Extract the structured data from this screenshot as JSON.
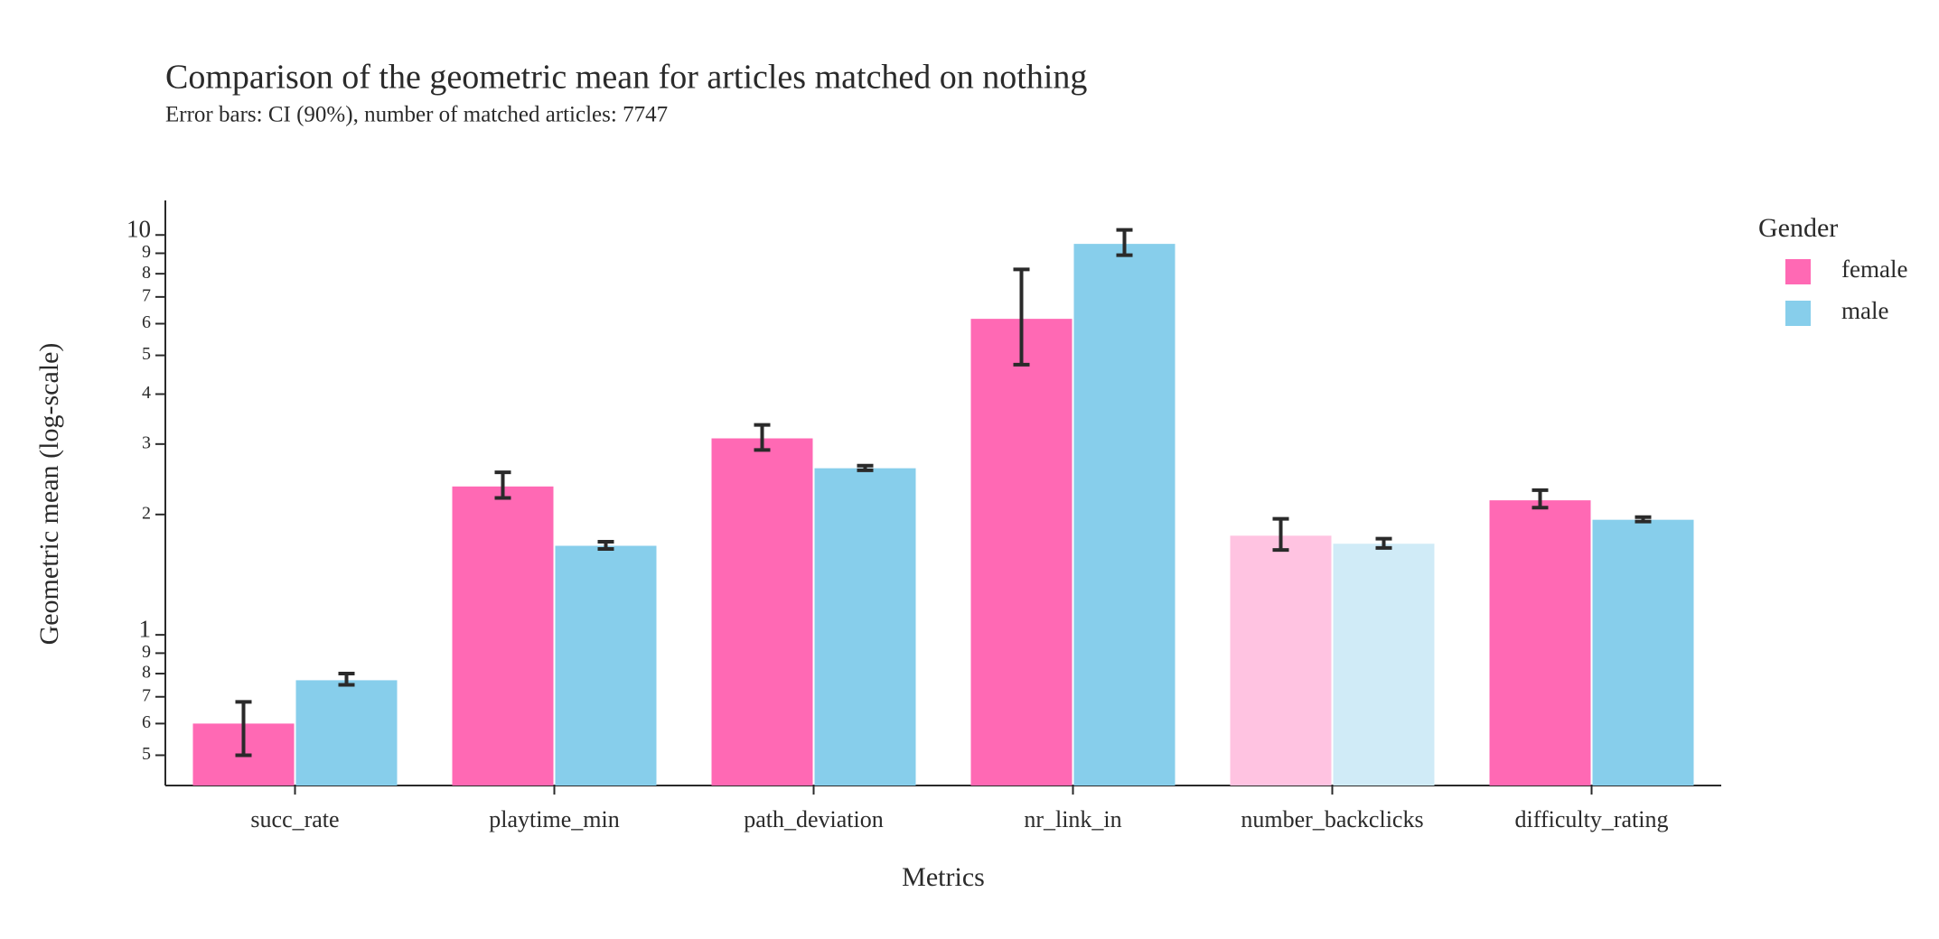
{
  "chart_data": {
    "type": "bar",
    "title": "Comparison of the geometric mean for articles matched on nothing",
    "subtitle": "Error bars: CI (90%), number of matched articles: 7747",
    "x_label": "Metrics",
    "y_label": "Geometric mean (log-scale)",
    "log_scale": true,
    "legend_title": "Gender",
    "legend_position": "right",
    "categories": [
      "succ_rate",
      "playtime_min",
      "path_deviation",
      "nr_link_in",
      "number_backclicks",
      "difficulty_rating"
    ],
    "series": [
      {
        "name": "female",
        "color": "#ff69b4",
        "colors": [
          "#ff69b4",
          "#ff69b4",
          "#ff69b4",
          "#ff69b4",
          "#ffc3e1",
          "#ff69b4"
        ],
        "values": [
          0.6,
          2.35,
          3.1,
          6.17,
          1.77,
          2.17
        ],
        "ci_low": [
          0.5,
          2.2,
          2.9,
          4.74,
          1.63,
          2.08
        ],
        "ci_high": [
          0.68,
          2.55,
          3.35,
          8.2,
          1.95,
          2.3
        ]
      },
      {
        "name": "male",
        "color": "#87ceeb",
        "colors": [
          "#87ceeb",
          "#87ceeb",
          "#87ceeb",
          "#87ceeb",
          "#d0ebf7",
          "#87ceeb"
        ],
        "values": [
          0.77,
          1.67,
          2.61,
          9.5,
          1.69,
          1.94
        ],
        "ci_low": [
          0.75,
          1.64,
          2.58,
          8.9,
          1.65,
          1.92
        ],
        "ci_high": [
          0.8,
          1.71,
          2.65,
          10.3,
          1.74,
          1.97
        ]
      }
    ],
    "ylim": [
      0.42,
      12.2
    ],
    "yticks": [
      {
        "value": 0.5,
        "label": "5"
      },
      {
        "value": 0.6,
        "label": "6"
      },
      {
        "value": 0.7,
        "label": "7"
      },
      {
        "value": 0.8,
        "label": "8"
      },
      {
        "value": 0.9,
        "label": "9"
      },
      1,
      2,
      3,
      4,
      5,
      6,
      7,
      8,
      9,
      10
    ]
  }
}
